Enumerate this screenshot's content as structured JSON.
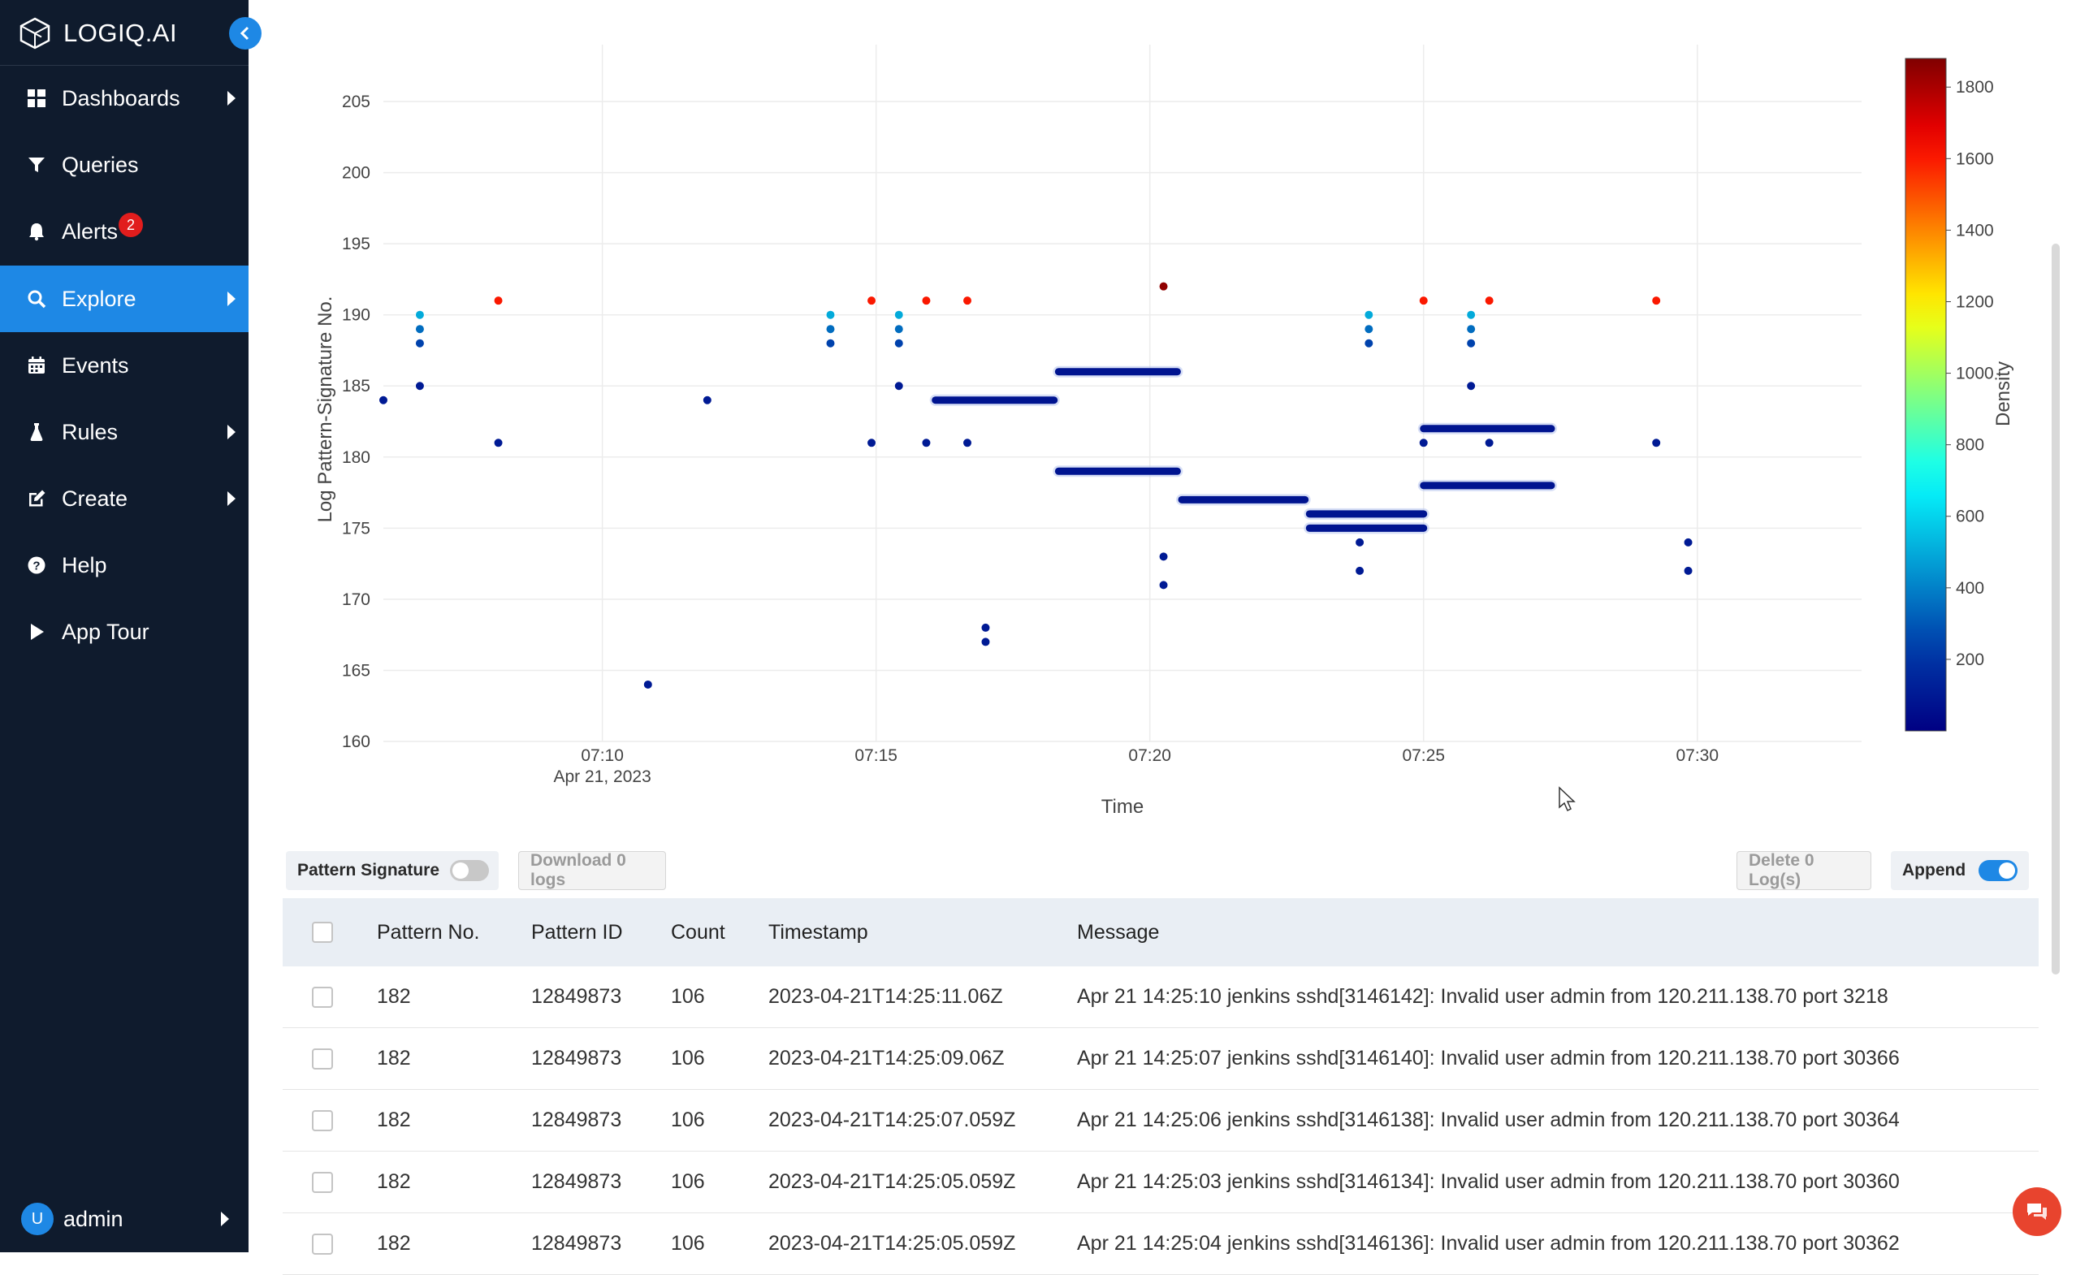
{
  "app": {
    "logo_text": "LOGIQ.AI"
  },
  "sidebar": {
    "items": [
      {
        "label": "Dashboards",
        "icon": "dashboard-icon",
        "has_arrow": true
      },
      {
        "label": "Queries",
        "icon": "filter-icon",
        "has_arrow": false
      },
      {
        "label": "Alerts",
        "icon": "bell-icon",
        "has_arrow": false,
        "badge": "2"
      },
      {
        "label": "Explore",
        "icon": "search-icon",
        "has_arrow": true,
        "active": true
      },
      {
        "label": "Events",
        "icon": "calendar-icon",
        "has_arrow": false
      },
      {
        "label": "Rules",
        "icon": "flask-icon",
        "has_arrow": true
      },
      {
        "label": "Create",
        "icon": "edit-icon",
        "has_arrow": true
      },
      {
        "label": "Help",
        "icon": "help-icon",
        "has_arrow": false
      },
      {
        "label": "App Tour",
        "icon": "play-icon",
        "has_arrow": false
      }
    ],
    "user": {
      "initial": "U",
      "name": "admin"
    }
  },
  "colors": {
    "sidebar_bg": "#0f1b2d",
    "accent": "#1e88e5",
    "badge": "#e11d1d"
  },
  "chart_data": {
    "type": "scatter",
    "xlabel": "Time",
    "ylabel": "Log Pattern-Signature No.",
    "x_ticks": [
      "07:10",
      "07:15",
      "07:20",
      "07:25",
      "07:30"
    ],
    "x_tick_sublabel": "Apr 21, 2023",
    "xlim": [
      "07:06",
      "07:33"
    ],
    "y_ticks": [
      160,
      165,
      170,
      175,
      180,
      185,
      190,
      195,
      200,
      205
    ],
    "ylim": [
      160,
      209
    ],
    "colorbar": {
      "title": "Density",
      "ticks": [
        200,
        400,
        600,
        800,
        1000,
        1200,
        1400,
        1600,
        1800
      ],
      "range": [
        0,
        1880
      ],
      "colorscale": "jet"
    },
    "points": [
      {
        "x": "07:06:00",
        "y": 184,
        "d": 100
      },
      {
        "x": "07:06:40",
        "y": 190,
        "d": 500
      },
      {
        "x": "07:06:40",
        "y": 189,
        "d": 350
      },
      {
        "x": "07:06:40",
        "y": 188,
        "d": 250
      },
      {
        "x": "07:06:40",
        "y": 185,
        "d": 100
      },
      {
        "x": "07:08:06",
        "y": 191,
        "d": 1600
      },
      {
        "x": "07:08:06",
        "y": 181,
        "d": 100
      },
      {
        "x": "07:10:50",
        "y": 164,
        "d": 100
      },
      {
        "x": "07:11:55",
        "y": 184,
        "d": 100
      },
      {
        "x": "07:14:10",
        "y": 190,
        "d": 500
      },
      {
        "x": "07:14:10",
        "y": 189,
        "d": 350
      },
      {
        "x": "07:14:10",
        "y": 188,
        "d": 250
      },
      {
        "x": "07:14:55",
        "y": 191,
        "d": 1600
      },
      {
        "x": "07:14:55",
        "y": 181,
        "d": 100
      },
      {
        "x": "07:15:25",
        "y": 190,
        "d": 500
      },
      {
        "x": "07:15:25",
        "y": 189,
        "d": 350
      },
      {
        "x": "07:15:25",
        "y": 188,
        "d": 250
      },
      {
        "x": "07:15:25",
        "y": 185,
        "d": 100
      },
      {
        "x": "07:15:55",
        "y": 191,
        "d": 1600
      },
      {
        "x": "07:15:55",
        "y": 181,
        "d": 100
      },
      {
        "x": "07:16:40",
        "y": 191,
        "d": 1600
      },
      {
        "x": "07:16:40",
        "y": 181,
        "d": 100
      },
      {
        "x": "07:17:00",
        "y": 168,
        "d": 100
      },
      {
        "x": "07:17:00",
        "y": 167,
        "d": 100
      },
      {
        "x": "07:20:15",
        "y": 192,
        "d": 1850
      },
      {
        "x": "07:20:15",
        "y": 173,
        "d": 100
      },
      {
        "x": "07:20:15",
        "y": 171,
        "d": 100
      },
      {
        "x": "07:23:50",
        "y": 174,
        "d": 100
      },
      {
        "x": "07:23:50",
        "y": 172,
        "d": 100
      },
      {
        "x": "07:24:00",
        "y": 190,
        "d": 500
      },
      {
        "x": "07:24:00",
        "y": 189,
        "d": 350
      },
      {
        "x": "07:24:00",
        "y": 188,
        "d": 250
      },
      {
        "x": "07:25:00",
        "y": 191,
        "d": 1600
      },
      {
        "x": "07:25:00",
        "y": 181,
        "d": 100
      },
      {
        "x": "07:25:52",
        "y": 190,
        "d": 500
      },
      {
        "x": "07:25:52",
        "y": 189,
        "d": 350
      },
      {
        "x": "07:25:52",
        "y": 188,
        "d": 250
      },
      {
        "x": "07:25:52",
        "y": 185,
        "d": 100
      },
      {
        "x": "07:26:12",
        "y": 191,
        "d": 1600
      },
      {
        "x": "07:26:12",
        "y": 181,
        "d": 100
      },
      {
        "x": "07:29:15",
        "y": 191,
        "d": 1600
      },
      {
        "x": "07:29:15",
        "y": 181,
        "d": 100
      },
      {
        "x": "07:29:50",
        "y": 174,
        "d": 100
      },
      {
        "x": "07:29:50",
        "y": 172,
        "d": 100
      }
    ],
    "runs": [
      {
        "x_start": "07:16:05",
        "x_end": "07:18:15",
        "y": 184,
        "d": 80
      },
      {
        "x_start": "07:18:20",
        "x_end": "07:20:30",
        "y": 186,
        "d": 80
      },
      {
        "x_start": "07:18:20",
        "x_end": "07:20:30",
        "y": 179,
        "d": 80
      },
      {
        "x_start": "07:20:35",
        "x_end": "07:22:50",
        "y": 177,
        "d": 80
      },
      {
        "x_start": "07:22:55",
        "x_end": "07:25:00",
        "y": 176,
        "d": 80
      },
      {
        "x_start": "07:22:55",
        "x_end": "07:25:00",
        "y": 175,
        "d": 80
      },
      {
        "x_start": "07:25:00",
        "x_end": "07:27:20",
        "y": 182,
        "d": 80
      },
      {
        "x_start": "07:25:00",
        "x_end": "07:27:20",
        "y": 178,
        "d": 80
      }
    ]
  },
  "toolbar": {
    "pattern_signature_label": "Pattern Signature",
    "pattern_signature_on": false,
    "download_label": "Download 0 logs",
    "delete_label": "Delete 0 Log(s)",
    "append_label": "Append",
    "append_on": true
  },
  "table": {
    "columns": [
      "Pattern No.",
      "Pattern ID",
      "Count",
      "Timestamp",
      "Message"
    ],
    "rows": [
      [
        "182",
        "12849873",
        "106",
        "2023-04-21T14:25:11.06Z",
        "Apr 21 14:25:10 jenkins sshd[3146142]: Invalid user admin from 120.211.138.70 port 3218"
      ],
      [
        "182",
        "12849873",
        "106",
        "2023-04-21T14:25:09.06Z",
        "Apr 21 14:25:07 jenkins sshd[3146140]: Invalid user admin from 120.211.138.70 port 30366"
      ],
      [
        "182",
        "12849873",
        "106",
        "2023-04-21T14:25:07.059Z",
        "Apr 21 14:25:06 jenkins sshd[3146138]: Invalid user admin from 120.211.138.70 port 30364"
      ],
      [
        "182",
        "12849873",
        "106",
        "2023-04-21T14:25:05.059Z",
        "Apr 21 14:25:03 jenkins sshd[3146134]: Invalid user admin from 120.211.138.70 port 30360"
      ],
      [
        "182",
        "12849873",
        "106",
        "2023-04-21T14:25:05.059Z",
        "Apr 21 14:25:04 jenkins sshd[3146136]: Invalid user admin from 120.211.138.70 port 30362"
      ]
    ]
  }
}
